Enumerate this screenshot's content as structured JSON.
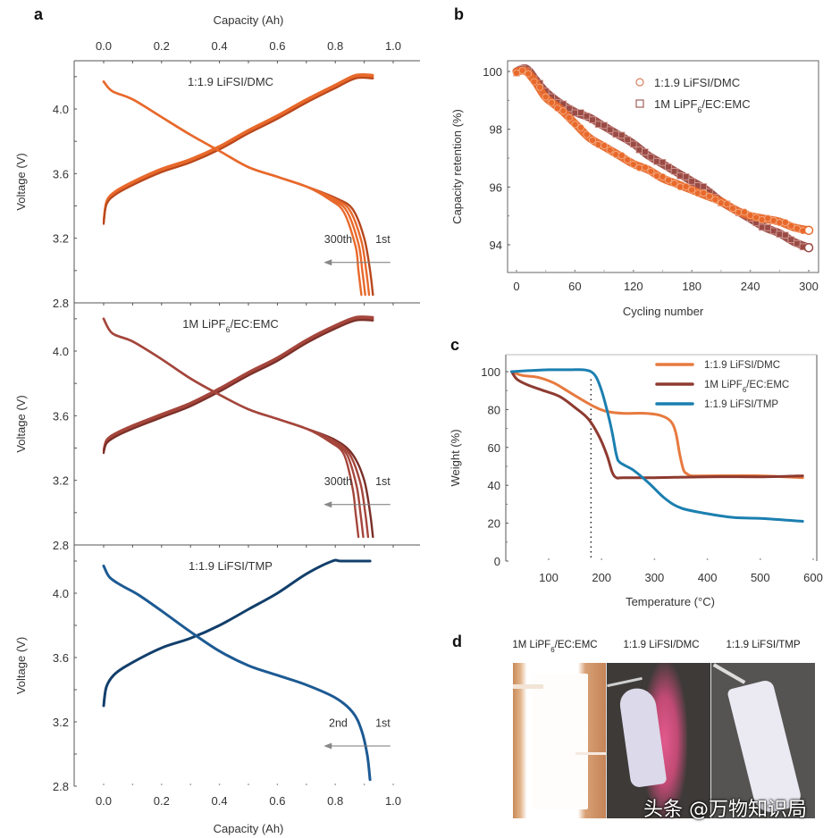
{
  "panels": {
    "a": {
      "label": "a",
      "x_axis_label": "Capacity (Ah)",
      "y_axis_label": "Voltage (V)",
      "x_ticks": [
        "0.0",
        "0.2",
        "0.4",
        "0.6",
        "0.8",
        "1.0"
      ],
      "y_ticks": [
        "2.8",
        "3.2",
        "3.6",
        "4.0"
      ]
    },
    "b": {
      "label": "b"
    },
    "c": {
      "label": "c"
    },
    "d": {
      "label": "d",
      "photo_labels": [
        "1M LiPF6/EC:EMC",
        "1:1.9 LiFSI/DMC",
        "1:1.9 LiFSI/TMP"
      ],
      "photo_label_parts": [
        {
          "pre": "1M LiPF",
          "sub": "6",
          "post": "/EC:EMC"
        },
        {
          "pre": "1:1.9 LiFSI/DMC",
          "sub": "",
          "post": ""
        },
        {
          "pre": "1:1.9 LiFSI/TMP",
          "sub": "",
          "post": ""
        }
      ]
    }
  },
  "watermark": "头条 @万物知识局",
  "colors": {
    "dmc": "#e8692b",
    "ec_emc": "#a5463c",
    "tmp": "#1d5a93",
    "tmp_c": "#1b7fb0",
    "dmc_c": "#e77a3f",
    "ec_emc_c": "#8e3a30"
  },
  "chart_data": [
    {
      "id": "a1",
      "type": "line",
      "title": "1:1.9 LiFSI/DMC",
      "title_parts": {
        "pre": "1:1.9 LiFSI/DMC",
        "sub": "",
        "post": ""
      },
      "xlabel": "Capacity (Ah)",
      "ylabel": "Voltage (V)",
      "xlim": [
        -0.1,
        1.05
      ],
      "ylim": [
        2.8,
        4.28
      ],
      "x_ticks": [
        0.0,
        0.2,
        0.4,
        0.6,
        0.8,
        1.0
      ],
      "y_ticks": [
        2.8,
        3.2,
        3.6,
        4.0
      ],
      "annotations": {
        "from": "1st",
        "to": "300th"
      },
      "series": [
        {
          "name": "charge",
          "cycles": 5,
          "x": [
            0.0,
            0.01,
            0.04,
            0.1,
            0.2,
            0.3,
            0.4,
            0.5,
            0.6,
            0.7,
            0.8,
            0.87,
            0.93
          ],
          "y": [
            3.3,
            3.42,
            3.48,
            3.54,
            3.62,
            3.68,
            3.76,
            3.86,
            3.95,
            4.05,
            4.14,
            4.2,
            4.2
          ]
        },
        {
          "name": "discharge-1st",
          "x": [
            0.0,
            0.03,
            0.1,
            0.2,
            0.3,
            0.4,
            0.5,
            0.6,
            0.7,
            0.8,
            0.86,
            0.9,
            0.92,
            0.93
          ],
          "y": [
            4.17,
            4.11,
            4.06,
            3.95,
            3.84,
            3.74,
            3.64,
            3.58,
            3.52,
            3.45,
            3.38,
            3.2,
            3.0,
            2.85
          ]
        },
        {
          "name": "discharge-300th",
          "x": [
            0.0,
            0.03,
            0.1,
            0.2,
            0.3,
            0.4,
            0.5,
            0.6,
            0.7,
            0.78,
            0.83,
            0.87,
            0.88,
            0.89
          ],
          "y": [
            4.17,
            4.11,
            4.06,
            3.95,
            3.84,
            3.74,
            3.64,
            3.58,
            3.52,
            3.44,
            3.36,
            3.15,
            3.0,
            2.85
          ]
        }
      ]
    },
    {
      "id": "a2",
      "type": "line",
      "title": "1M LiPF6/EC:EMC",
      "title_parts": {
        "pre": "1M LiPF",
        "sub": "6",
        "post": "/EC:EMC"
      },
      "xlabel": "Capacity (Ah)",
      "ylabel": "Voltage (V)",
      "xlim": [
        -0.1,
        1.05
      ],
      "ylim": [
        2.8,
        4.28
      ],
      "x_ticks": [
        0.0,
        0.2,
        0.4,
        0.6,
        0.8,
        1.0
      ],
      "y_ticks": [
        2.8,
        3.2,
        3.6,
        4.0
      ],
      "annotations": {
        "from": "1st",
        "to": "300th"
      },
      "series": [
        {
          "name": "charge",
          "cycles": 5,
          "x": [
            0.0,
            0.01,
            0.04,
            0.1,
            0.2,
            0.3,
            0.4,
            0.5,
            0.6,
            0.7,
            0.8,
            0.87,
            0.93
          ],
          "y": [
            3.38,
            3.44,
            3.48,
            3.53,
            3.6,
            3.67,
            3.76,
            3.86,
            3.95,
            4.06,
            4.15,
            4.2,
            4.2
          ]
        },
        {
          "name": "discharge-1st",
          "x": [
            0.0,
            0.03,
            0.1,
            0.2,
            0.3,
            0.4,
            0.5,
            0.6,
            0.7,
            0.8,
            0.86,
            0.9,
            0.92,
            0.93
          ],
          "y": [
            4.2,
            4.11,
            4.06,
            3.95,
            3.83,
            3.73,
            3.64,
            3.58,
            3.52,
            3.45,
            3.36,
            3.2,
            3.0,
            2.85
          ]
        },
        {
          "name": "discharge-300th",
          "x": [
            0.0,
            0.03,
            0.1,
            0.2,
            0.3,
            0.4,
            0.5,
            0.6,
            0.7,
            0.78,
            0.83,
            0.86,
            0.87,
            0.88
          ],
          "y": [
            4.2,
            4.11,
            4.06,
            3.95,
            3.83,
            3.73,
            3.64,
            3.58,
            3.52,
            3.44,
            3.36,
            3.15,
            3.0,
            2.85
          ]
        }
      ]
    },
    {
      "id": "a3",
      "type": "line",
      "title": "1:1.9 LiFSI/TMP",
      "title_parts": {
        "pre": "1:1.9 LiFSI/TMP",
        "sub": "",
        "post": ""
      },
      "xlabel": "Capacity (Ah)",
      "ylabel": "Voltage (V)",
      "xlim": [
        -0.1,
        1.05
      ],
      "ylim": [
        2.8,
        4.28
      ],
      "x_ticks": [
        0.0,
        0.2,
        0.4,
        0.6,
        0.8,
        1.0
      ],
      "y_ticks": [
        2.8,
        3.2,
        3.6,
        4.0
      ],
      "annotations": {
        "from": "1st",
        "to": "2nd"
      },
      "series": [
        {
          "name": "charge",
          "cycles": 1,
          "x": [
            0.0,
            0.01,
            0.04,
            0.1,
            0.2,
            0.3,
            0.4,
            0.5,
            0.6,
            0.7,
            0.79,
            0.82,
            0.92
          ],
          "y": [
            3.3,
            3.42,
            3.5,
            3.57,
            3.66,
            3.72,
            3.8,
            3.9,
            4.0,
            4.12,
            4.2,
            4.2,
            4.2
          ]
        },
        {
          "name": "discharge",
          "x": [
            0.0,
            0.02,
            0.06,
            0.12,
            0.2,
            0.3,
            0.4,
            0.5,
            0.6,
            0.7,
            0.8,
            0.86,
            0.89,
            0.91,
            0.92
          ],
          "y": [
            4.17,
            4.1,
            4.05,
            3.99,
            3.89,
            3.76,
            3.64,
            3.55,
            3.49,
            3.43,
            3.35,
            3.26,
            3.15,
            3.0,
            2.84
          ]
        }
      ]
    },
    {
      "id": "b",
      "type": "scatter",
      "title": "",
      "xlabel": "Cycling number",
      "ylabel": "Capacity retention (%)",
      "xlim": [
        -10,
        310
      ],
      "ylim": [
        93.2,
        100.4
      ],
      "x_ticks": [
        0,
        60,
        120,
        180,
        240,
        300
      ],
      "y_ticks": [
        94,
        96,
        98,
        100
      ],
      "legend": "top-right",
      "series": [
        {
          "name": "1:1.9 LiFSI/DMC",
          "marker": "circle",
          "x": [
            0,
            10,
            20,
            30,
            45,
            60,
            75,
            90,
            105,
            120,
            135,
            150,
            165,
            180,
            195,
            210,
            225,
            240,
            255,
            270,
            285,
            300
          ],
          "y": [
            100.0,
            100.0,
            99.6,
            99.1,
            98.7,
            98.2,
            97.7,
            97.4,
            97.1,
            96.8,
            96.6,
            96.3,
            96.1,
            95.9,
            95.7,
            95.5,
            95.2,
            95.0,
            94.9,
            94.8,
            94.6,
            94.5
          ]
        },
        {
          "name": "1M LiPF6/EC:EMC",
          "marker": "square",
          "x": [
            0,
            10,
            20,
            30,
            45,
            60,
            75,
            90,
            105,
            120,
            135,
            150,
            165,
            180,
            195,
            210,
            225,
            240,
            255,
            270,
            285,
            300
          ],
          "y": [
            100.0,
            100.1,
            99.7,
            99.3,
            98.9,
            98.6,
            98.4,
            98.1,
            97.8,
            97.5,
            97.1,
            96.8,
            96.5,
            96.2,
            95.9,
            95.5,
            95.2,
            94.9,
            94.6,
            94.4,
            94.1,
            93.9
          ]
        }
      ]
    },
    {
      "id": "c",
      "type": "line",
      "title": "",
      "xlabel": "Temperature (°C)",
      "ylabel": "Weight (%)",
      "xlim": [
        25,
        610
      ],
      "ylim": [
        0,
        110
      ],
      "x_ticks": [
        100,
        200,
        300,
        400,
        500,
        600
      ],
      "y_ticks": [
        0,
        20,
        40,
        60,
        80,
        100
      ],
      "legend": "top-right",
      "reference_line": {
        "x": 180,
        "style": "dotted"
      },
      "series": [
        {
          "name": "1:1.9 LiFSI/DMC",
          "x": [
            30,
            50,
            80,
            110,
            140,
            170,
            190,
            210,
            240,
            280,
            310,
            330,
            340,
            348,
            355,
            362,
            370,
            400,
            500,
            580
          ],
          "y": [
            100,
            98,
            97,
            94,
            89,
            84,
            81,
            79,
            78,
            78,
            77,
            74,
            68,
            56,
            48,
            46,
            45,
            45,
            45,
            44
          ]
        },
        {
          "name": "1M LiPF6/EC:EMC",
          "x": [
            30,
            40,
            60,
            90,
            120,
            150,
            175,
            195,
            210,
            220,
            228,
            240,
            300,
            400,
            500,
            580
          ],
          "y": [
            100,
            96,
            93,
            90,
            87,
            81,
            75,
            66,
            56,
            47,
            44,
            44,
            44,
            44.5,
            44.5,
            45
          ]
        },
        {
          "name": "1:1.9 LiFSI/TMP",
          "x": [
            30,
            60,
            100,
            140,
            165,
            180,
            190,
            200,
            210,
            220,
            228,
            235,
            260,
            290,
            320,
            350,
            400,
            450,
            500,
            580
          ],
          "y": [
            100,
            100.5,
            101,
            101,
            101,
            100,
            97,
            90,
            80,
            68,
            56,
            52,
            48,
            41,
            33,
            28,
            25,
            23,
            22.5,
            21
          ]
        }
      ]
    }
  ]
}
